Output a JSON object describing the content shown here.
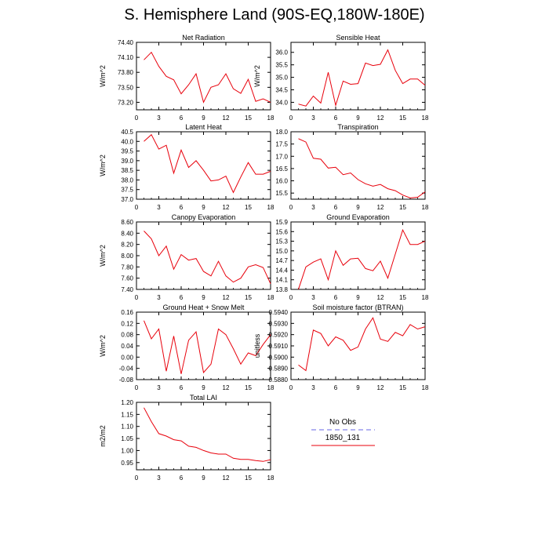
{
  "figure": {
    "title": "S. Hemisphere Land (90S-EQ,180W-180E)"
  },
  "legend": {
    "entries": [
      {
        "label": "No Obs",
        "color": "#9999ee",
        "style": "dashed"
      },
      {
        "label": "1850_131",
        "color": "#e8000b",
        "style": "solid"
      }
    ]
  },
  "chart_data": [
    {
      "type": "line",
      "title": "Net Radiation",
      "ylabel": "W/m^2",
      "x": [
        1,
        2,
        3,
        4,
        5,
        6,
        7,
        8,
        9,
        10,
        11,
        12,
        13,
        14,
        15,
        16,
        17,
        18
      ],
      "xlim": [
        0,
        18
      ],
      "xticks": [
        0,
        3,
        6,
        9,
        12,
        15,
        18
      ],
      "ylim": [
        73.05,
        74.4
      ],
      "yticks": [
        73.2,
        73.5,
        73.8,
        74.1,
        74.4
      ],
      "yticklabels": [
        "73.20",
        "73.50",
        "73.80",
        "74.10",
        "74.40"
      ],
      "series": [
        {
          "name": "1850_131",
          "color": "#e8000b",
          "values": [
            74.05,
            74.2,
            73.92,
            73.72,
            73.65,
            73.37,
            73.55,
            73.77,
            73.2,
            73.5,
            73.55,
            73.77,
            73.47,
            73.38,
            73.66,
            73.22,
            73.27,
            73.2
          ]
        }
      ]
    },
    {
      "type": "line",
      "title": "Sensible Heat",
      "ylabel": "W/m^2",
      "x": [
        1,
        2,
        3,
        4,
        5,
        6,
        7,
        8,
        9,
        10,
        11,
        12,
        13,
        14,
        15,
        16,
        17,
        18
      ],
      "xlim": [
        0,
        18
      ],
      "xticks": [
        0,
        3,
        6,
        9,
        12,
        15,
        18
      ],
      "ylim": [
        33.7,
        36.4
      ],
      "yticks": [
        34.0,
        34.5,
        35.0,
        35.5,
        36.0
      ],
      "yticklabels": [
        "34.0",
        "34.5",
        "35.0",
        "35.5",
        "36.0"
      ],
      "series": [
        {
          "name": "1850_131",
          "color": "#e8000b",
          "values": [
            33.93,
            33.85,
            34.25,
            33.97,
            35.2,
            33.88,
            34.85,
            34.72,
            34.75,
            35.57,
            35.47,
            35.52,
            36.1,
            35.28,
            34.75,
            34.93,
            34.93,
            34.68
          ]
        }
      ]
    },
    {
      "type": "line",
      "title": "Latent Heat",
      "ylabel": "W/m^2",
      "x": [
        1,
        2,
        3,
        4,
        5,
        6,
        7,
        8,
        9,
        10,
        11,
        12,
        13,
        14,
        15,
        16,
        17,
        18
      ],
      "xlim": [
        0,
        18
      ],
      "xticks": [
        0,
        3,
        6,
        9,
        12,
        15,
        18
      ],
      "ylim": [
        37.0,
        40.5
      ],
      "yticks": [
        37.0,
        37.5,
        38.0,
        38.5,
        39.0,
        39.5,
        40.0,
        40.5
      ],
      "yticklabels": [
        "37.0",
        "37.5",
        "38.0",
        "38.5",
        "39.0",
        "39.5",
        "40.0",
        "40.5"
      ],
      "series": [
        {
          "name": "1850_131",
          "color": "#e8000b",
          "values": [
            40.0,
            40.35,
            39.6,
            39.8,
            38.35,
            39.55,
            38.65,
            39.0,
            38.5,
            37.95,
            38.0,
            38.2,
            37.35,
            38.15,
            38.9,
            38.3,
            38.3,
            38.45
          ]
        }
      ]
    },
    {
      "type": "line",
      "title": "Transpiration",
      "ylabel": "",
      "x": [
        1,
        2,
        3,
        4,
        5,
        6,
        7,
        8,
        9,
        10,
        11,
        12,
        13,
        14,
        15,
        16,
        17,
        18
      ],
      "xlim": [
        0,
        18
      ],
      "xticks": [
        0,
        3,
        6,
        9,
        12,
        15,
        18
      ],
      "ylim": [
        15.25,
        18.0
      ],
      "yticks": [
        15.5,
        16.0,
        16.5,
        17.0,
        17.5,
        18.0
      ],
      "yticklabels": [
        "15.5",
        "16.0",
        "16.5",
        "17.0",
        "17.5",
        "18.0"
      ],
      "series": [
        {
          "name": "1850_131",
          "color": "#e8000b",
          "values": [
            17.72,
            17.58,
            16.92,
            16.88,
            16.52,
            16.55,
            16.25,
            16.32,
            16.05,
            15.88,
            15.78,
            15.85,
            15.68,
            15.6,
            15.42,
            15.3,
            15.33,
            15.55
          ]
        }
      ]
    },
    {
      "type": "line",
      "title": "Canopy Evaporation",
      "ylabel": "W/m^2",
      "x": [
        1,
        2,
        3,
        4,
        5,
        6,
        7,
        8,
        9,
        10,
        11,
        12,
        13,
        14,
        15,
        16,
        17,
        18
      ],
      "xlim": [
        0,
        18
      ],
      "xticks": [
        0,
        3,
        6,
        9,
        12,
        15,
        18
      ],
      "ylim": [
        7.4,
        8.6
      ],
      "yticks": [
        7.4,
        7.6,
        7.8,
        8.0,
        8.2,
        8.4,
        8.6
      ],
      "yticklabels": [
        "7.40",
        "7.60",
        "7.80",
        "8.00",
        "8.20",
        "8.40",
        "8.60"
      ],
      "series": [
        {
          "name": "1850_131",
          "color": "#e8000b",
          "values": [
            8.44,
            8.3,
            8.0,
            8.17,
            7.76,
            8.02,
            7.92,
            7.95,
            7.72,
            7.64,
            7.9,
            7.64,
            7.53,
            7.6,
            7.8,
            7.84,
            7.79,
            7.5
          ]
        }
      ]
    },
    {
      "type": "line",
      "title": "Ground Evaporation",
      "ylabel": "",
      "x": [
        1,
        2,
        3,
        4,
        5,
        6,
        7,
        8,
        9,
        10,
        11,
        12,
        13,
        14,
        15,
        16,
        17,
        18
      ],
      "xlim": [
        0,
        18
      ],
      "xticks": [
        0,
        3,
        6,
        9,
        12,
        15,
        18
      ],
      "ylim": [
        13.8,
        15.9
      ],
      "yticks": [
        13.8,
        14.1,
        14.4,
        14.7,
        15.0,
        15.3,
        15.6,
        15.9
      ],
      "yticklabels": [
        "13.8",
        "14.1",
        "14.4",
        "14.7",
        "15.0",
        "15.3",
        "15.6",
        "15.9"
      ],
      "series": [
        {
          "name": "1850_131",
          "color": "#e8000b",
          "values": [
            13.8,
            14.5,
            14.65,
            14.75,
            14.1,
            15.0,
            14.55,
            14.75,
            14.77,
            14.45,
            14.38,
            14.68,
            14.15,
            14.9,
            15.65,
            15.2,
            15.2,
            15.3
          ]
        }
      ]
    },
    {
      "type": "line",
      "title": "Ground Heat + Snow Melt",
      "ylabel": "W/m^2",
      "x": [
        1,
        2,
        3,
        4,
        5,
        6,
        7,
        8,
        9,
        10,
        11,
        12,
        13,
        14,
        15,
        16,
        17,
        18
      ],
      "xlim": [
        0,
        18
      ],
      "xticks": [
        0,
        3,
        6,
        9,
        12,
        15,
        18
      ],
      "ylim": [
        -0.08,
        0.16
      ],
      "yticks": [
        -0.08,
        -0.04,
        0.0,
        0.04,
        0.08,
        0.12,
        0.16
      ],
      "yticklabels": [
        "-0.08",
        "-0.04",
        "0.00",
        "0.04",
        "0.08",
        "0.12",
        "0.16"
      ],
      "series": [
        {
          "name": "1850_131",
          "color": "#e8000b",
          "values": [
            0.13,
            0.065,
            0.1,
            -0.05,
            0.075,
            -0.06,
            0.06,
            0.09,
            -0.055,
            -0.025,
            0.1,
            0.08,
            0.03,
            -0.025,
            0.015,
            0.005,
            0.045,
            0.08
          ]
        }
      ]
    },
    {
      "type": "line",
      "title": "Soil moisture factor (BTRAN)",
      "ylabel": "unitless",
      "x": [
        1,
        2,
        3,
        4,
        5,
        6,
        7,
        8,
        9,
        10,
        11,
        12,
        13,
        14,
        15,
        16,
        17,
        18
      ],
      "xlim": [
        0,
        18
      ],
      "xticks": [
        0,
        3,
        6,
        9,
        12,
        15,
        18
      ],
      "ylim": [
        0.588,
        0.594
      ],
      "yticks": [
        0.588,
        0.589,
        0.59,
        0.591,
        0.592,
        0.593,
        0.594
      ],
      "yticklabels": [
        "0.5880",
        "0.5890",
        "0.5900",
        "0.5910",
        "0.5920",
        "0.5930",
        "0.5940"
      ],
      "series": [
        {
          "name": "1850_131",
          "color": "#e8000b",
          "values": [
            0.5893,
            0.5888,
            0.5924,
            0.5921,
            0.591,
            0.5918,
            0.5915,
            0.5906,
            0.5909,
            0.5925,
            0.5935,
            0.5916,
            0.5914,
            0.5922,
            0.5919,
            0.5929,
            0.5925,
            0.5927
          ]
        }
      ]
    },
    {
      "type": "line",
      "title": "Total LAI",
      "ylabel": "m2/m2",
      "x": [
        1,
        2,
        3,
        4,
        5,
        6,
        7,
        8,
        9,
        10,
        11,
        12,
        13,
        14,
        15,
        16,
        17,
        18
      ],
      "xlim": [
        0,
        18
      ],
      "xticks": [
        0,
        3,
        6,
        9,
        12,
        15,
        18
      ],
      "ylim": [
        0.92,
        1.2
      ],
      "yticks": [
        0.95,
        1.0,
        1.05,
        1.1,
        1.15,
        1.2
      ],
      "yticklabels": [
        "0.95",
        "1.00",
        "1.05",
        "1.10",
        "1.15",
        "1.20"
      ],
      "series": [
        {
          "name": "1850_131",
          "color": "#e8000b",
          "values": [
            1.178,
            1.12,
            1.07,
            1.06,
            1.045,
            1.04,
            1.018,
            1.013,
            1.0,
            0.99,
            0.985,
            0.985,
            0.968,
            0.963,
            0.963,
            0.958,
            0.955,
            0.962
          ]
        }
      ]
    }
  ]
}
